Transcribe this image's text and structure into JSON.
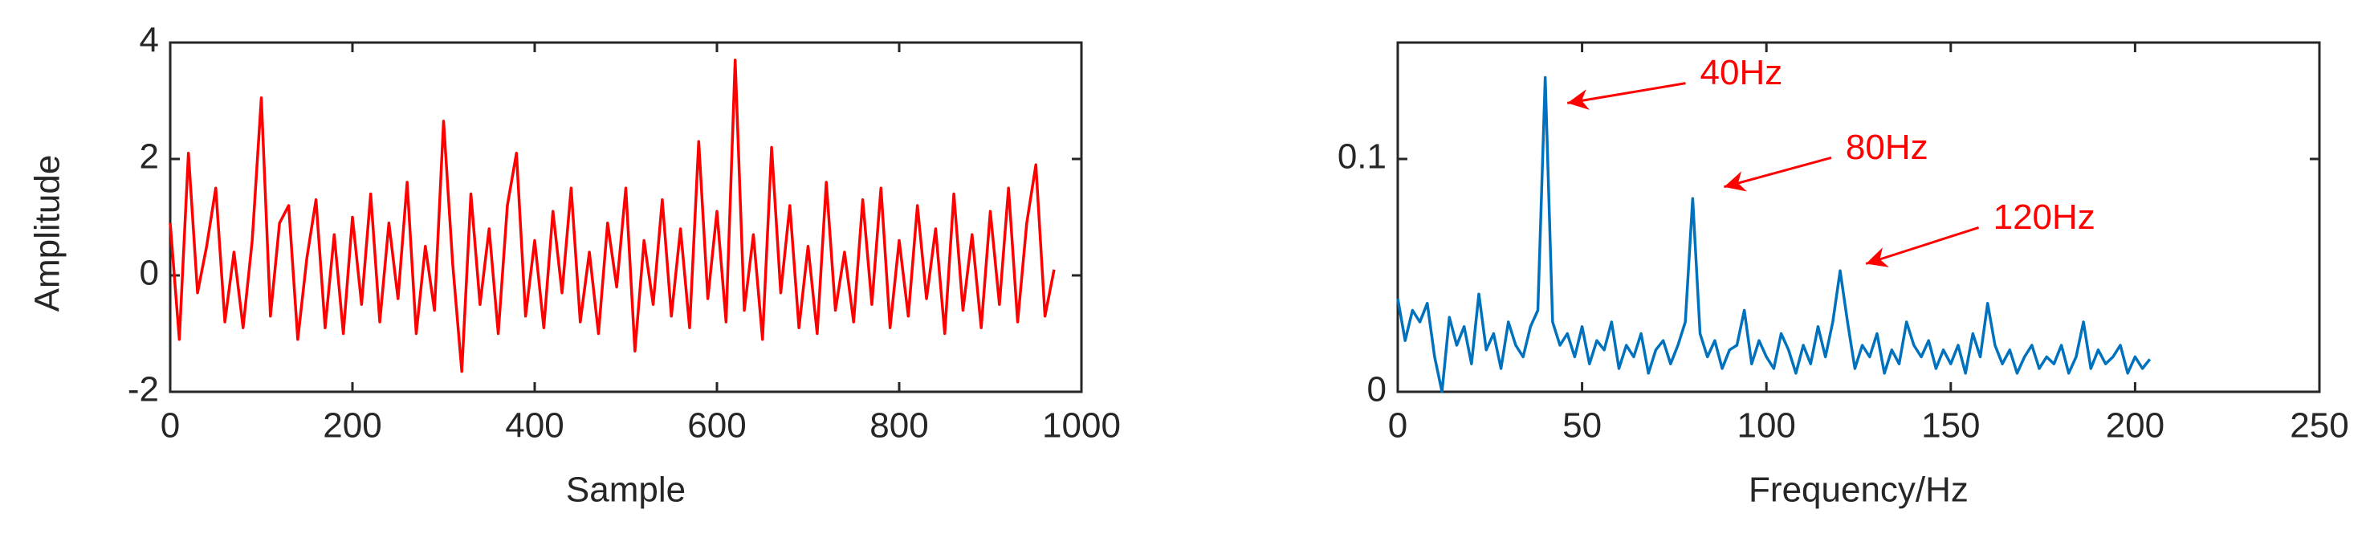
{
  "chart_data": [
    {
      "type": "line",
      "x_label": "Sample",
      "y_label": "Amplitude",
      "xlim": [
        0,
        1000
      ],
      "xticks": [
        0,
        200,
        400,
        600,
        800,
        1000
      ],
      "ylim": [
        -2,
        4
      ],
      "yticks": [
        -2,
        0,
        2,
        4
      ],
      "series": [
        {
          "color": "#ff0000",
          "x": [
            0,
            10,
            20,
            30,
            40,
            50,
            60,
            70,
            80,
            90,
            100,
            110,
            120,
            130,
            140,
            150,
            160,
            170,
            180,
            190,
            200,
            210,
            220,
            230,
            240,
            250,
            260,
            270,
            280,
            290,
            300,
            310,
            320,
            330,
            340,
            350,
            360,
            370,
            380,
            390,
            400,
            410,
            420,
            430,
            440,
            450,
            460,
            470,
            480,
            490,
            500,
            510,
            520,
            530,
            540,
            550,
            560,
            570,
            580,
            590,
            600,
            610,
            620,
            630,
            640,
            650,
            660,
            670,
            680,
            690,
            700,
            710,
            720,
            730,
            740,
            750,
            760,
            770,
            780,
            790,
            800,
            810,
            820,
            830,
            840,
            850,
            860,
            870,
            880,
            890,
            900,
            910,
            920,
            930,
            940,
            950,
            960,
            970
          ],
          "values": [
            0.9,
            -1.1,
            2.1,
            -0.3,
            0.5,
            1.5,
            -0.8,
            0.4,
            -0.9,
            0.6,
            3.05,
            -0.7,
            0.9,
            1.2,
            -1.1,
            0.3,
            1.3,
            -0.9,
            0.7,
            -1.0,
            1.0,
            -0.5,
            1.4,
            -0.8,
            0.9,
            -0.4,
            1.6,
            -1.0,
            0.5,
            -0.6,
            2.65,
            0.2,
            -1.65,
            1.4,
            -0.5,
            0.8,
            -1.0,
            1.2,
            2.1,
            -0.7,
            0.6,
            -0.9,
            1.1,
            -0.3,
            1.5,
            -0.8,
            0.4,
            -1.0,
            0.9,
            -0.2,
            1.5,
            -1.3,
            0.6,
            -0.5,
            1.3,
            -0.7,
            0.8,
            -0.9,
            2.3,
            -0.4,
            1.1,
            -0.8,
            3.7,
            -0.6,
            0.7,
            -1.1,
            2.2,
            -0.3,
            1.2,
            -0.9,
            0.5,
            -1.0,
            1.6,
            -0.6,
            0.4,
            -0.8,
            1.3,
            -0.5,
            1.5,
            -0.9,
            0.6,
            -0.7,
            1.2,
            -0.4,
            0.8,
            -1.0,
            1.4,
            -0.6,
            0.7,
            -0.9,
            1.1,
            -0.5,
            1.5,
            -0.8,
            0.9,
            1.9,
            -0.7,
            0.1
          ]
        }
      ]
    },
    {
      "type": "line",
      "x_label": "Frequency/Hz",
      "xlim": [
        0,
        250
      ],
      "xticks": [
        0,
        50,
        100,
        150,
        200,
        250
      ],
      "ylim": [
        0,
        0.15
      ],
      "yticks": [
        0,
        0.1
      ],
      "series": [
        {
          "color": "#0072bd",
          "x": [
            0,
            2,
            4,
            6,
            8,
            10,
            12,
            14,
            16,
            18,
            20,
            22,
            24,
            26,
            28,
            30,
            32,
            34,
            36,
            38,
            40,
            42,
            44,
            46,
            48,
            50,
            52,
            54,
            56,
            58,
            60,
            62,
            64,
            66,
            68,
            70,
            72,
            74,
            76,
            78,
            80,
            82,
            84,
            86,
            88,
            90,
            92,
            94,
            96,
            98,
            100,
            102,
            104,
            106,
            108,
            110,
            112,
            114,
            116,
            118,
            120,
            122,
            124,
            126,
            128,
            130,
            132,
            134,
            136,
            138,
            140,
            142,
            144,
            146,
            148,
            150,
            152,
            154,
            156,
            158,
            160,
            162,
            164,
            166,
            168,
            170,
            172,
            174,
            176,
            178,
            180,
            182,
            184,
            186,
            188,
            190,
            192,
            194,
            196,
            198,
            200,
            202,
            204
          ],
          "values": [
            0.04,
            0.022,
            0.035,
            0.03,
            0.038,
            0.015,
            0.0,
            0.032,
            0.02,
            0.028,
            0.012,
            0.042,
            0.018,
            0.025,
            0.01,
            0.03,
            0.02,
            0.015,
            0.028,
            0.035,
            0.135,
            0.03,
            0.02,
            0.025,
            0.015,
            0.028,
            0.012,
            0.022,
            0.018,
            0.03,
            0.01,
            0.02,
            0.015,
            0.025,
            0.008,
            0.018,
            0.022,
            0.012,
            0.02,
            0.03,
            0.083,
            0.025,
            0.015,
            0.022,
            0.01,
            0.018,
            0.02,
            0.035,
            0.012,
            0.022,
            0.015,
            0.01,
            0.025,
            0.018,
            0.008,
            0.02,
            0.012,
            0.028,
            0.015,
            0.03,
            0.052,
            0.03,
            0.01,
            0.02,
            0.015,
            0.025,
            0.008,
            0.018,
            0.012,
            0.03,
            0.02,
            0.015,
            0.022,
            0.01,
            0.018,
            0.012,
            0.02,
            0.008,
            0.025,
            0.015,
            0.038,
            0.02,
            0.012,
            0.018,
            0.008,
            0.015,
            0.02,
            0.01,
            0.015,
            0.012,
            0.02,
            0.008,
            0.015,
            0.03,
            0.01,
            0.018,
            0.012,
            0.015,
            0.02,
            0.008,
            0.015,
            0.01,
            0.014
          ]
        }
      ],
      "annotations": [
        {
          "text": "40Hz",
          "xy": [
            46,
            0.124
          ],
          "xytext": [
            82,
            0.136
          ]
        },
        {
          "text": "80Hz",
          "xy": [
            88.5,
            0.088
          ],
          "xytext": [
            121.5,
            0.104
          ]
        },
        {
          "text": "120Hz",
          "xy": [
            127,
            0.055
          ],
          "xytext": [
            161.5,
            0.074
          ]
        }
      ]
    }
  ]
}
